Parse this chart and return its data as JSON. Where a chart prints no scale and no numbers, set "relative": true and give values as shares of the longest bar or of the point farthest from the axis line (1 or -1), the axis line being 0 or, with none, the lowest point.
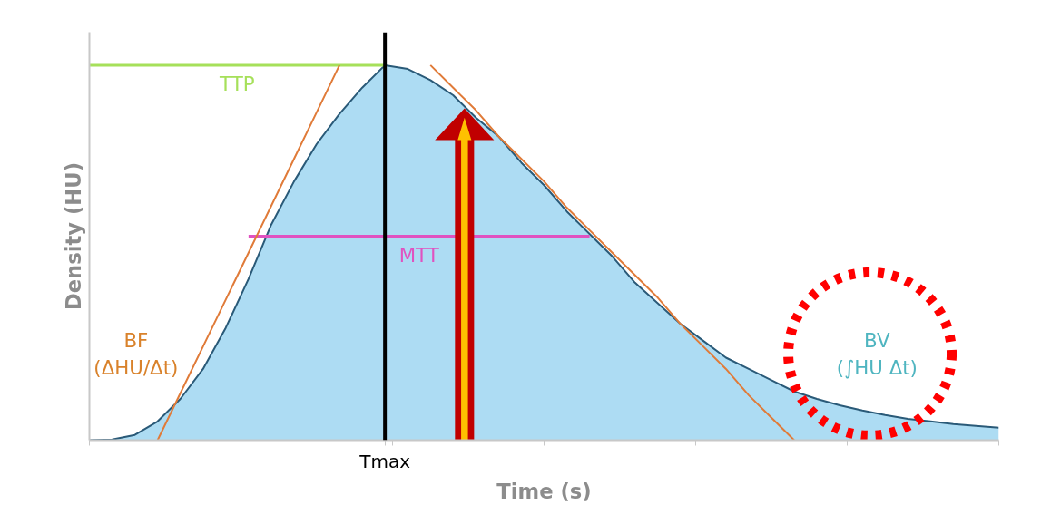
{
  "chart_data": {
    "type": "area",
    "relative": true,
    "xlabel": "Time (s)",
    "ylabel": "Density (HU)",
    "categories": [
      null,
      null,
      null,
      null,
      null,
      null,
      null,
      null,
      null,
      null,
      null,
      null,
      null,
      null,
      null,
      null,
      null,
      null,
      null,
      null,
      null,
      null,
      null,
      null,
      null,
      null,
      null,
      null,
      null,
      null,
      null,
      null,
      null,
      null,
      null,
      null,
      null,
      null,
      null,
      null,
      null
    ],
    "series": [
      {
        "color": "#addcf3",
        "values": [
          0,
          0.002,
          0.014,
          0.05,
          0.11,
          0.19,
          0.3,
          0.43,
          0.575,
          0.69,
          0.79,
          0.87,
          0.94,
          1.0,
          0.99,
          0.96,
          0.92,
          0.86,
          0.81,
          0.74,
          0.68,
          0.61,
          0.55,
          0.49,
          0.42,
          0.365,
          0.31,
          0.265,
          0.22,
          0.19,
          0.16,
          0.13,
          0.11,
          0.093,
          0.079,
          0.067,
          0.057,
          0.05,
          0.043,
          0.038,
          0.033
        ]
      },
      {
        "name": "TTP",
        "type": "line",
        "color": "#a6e05a",
        "values": [
          1,
          1,
          1,
          1,
          1,
          1,
          1,
          1,
          1,
          1,
          1,
          1,
          1,
          1,
          null,
          null,
          null,
          null,
          null,
          null,
          null,
          null,
          null,
          null,
          null,
          null,
          null,
          null,
          null,
          null,
          null,
          null,
          null,
          null,
          null,
          null,
          null,
          null,
          null,
          null,
          null
        ]
      },
      {
        "name": "MTT",
        "type": "line",
        "color": "#e052c0",
        "values": [
          null,
          null,
          null,
          null,
          null,
          null,
          null,
          0.544,
          0.544,
          0.544,
          0.544,
          0.544,
          0.544,
          0.544,
          0.544,
          0.544,
          0.544,
          0.544,
          0.544,
          0.544,
          0.544,
          0.544,
          0.544,
          null,
          null,
          null,
          null,
          null,
          null,
          null,
          null,
          null,
          null,
          null,
          null,
          null,
          null,
          null,
          null,
          null,
          null
        ]
      },
      {
        "type": "line",
        "color": "#e07b39",
        "values": [
          null,
          null,
          null,
          0,
          0.125,
          0.25,
          0.375,
          0.5,
          0.625,
          0.75,
          0.875,
          1.0,
          null,
          null,
          null,
          null,
          null,
          null,
          null,
          null,
          null,
          null,
          null,
          null,
          null,
          null,
          null,
          null,
          null,
          null,
          null,
          null,
          null,
          null,
          null,
          null,
          null,
          null,
          null,
          null,
          null
        ]
      },
      {
        "type": "line",
        "color": "#e07b39",
        "values": [
          null,
          null,
          null,
          null,
          null,
          null,
          null,
          null,
          null,
          null,
          null,
          null,
          null,
          null,
          null,
          1,
          0.94,
          0.88,
          0.81,
          0.75,
          0.69,
          0.62,
          0.56,
          0.5,
          0.44,
          0.38,
          0.31,
          0.25,
          0.19,
          0.12,
          0.06,
          0,
          null,
          null,
          null,
          null,
          null,
          null,
          null,
          null,
          null
        ]
      }
    ],
    "annotations": [
      "Tmax",
      "BF\n(ΔHU/Δt)",
      "BV\n(∫HU Δt)"
    ]
  }
}
